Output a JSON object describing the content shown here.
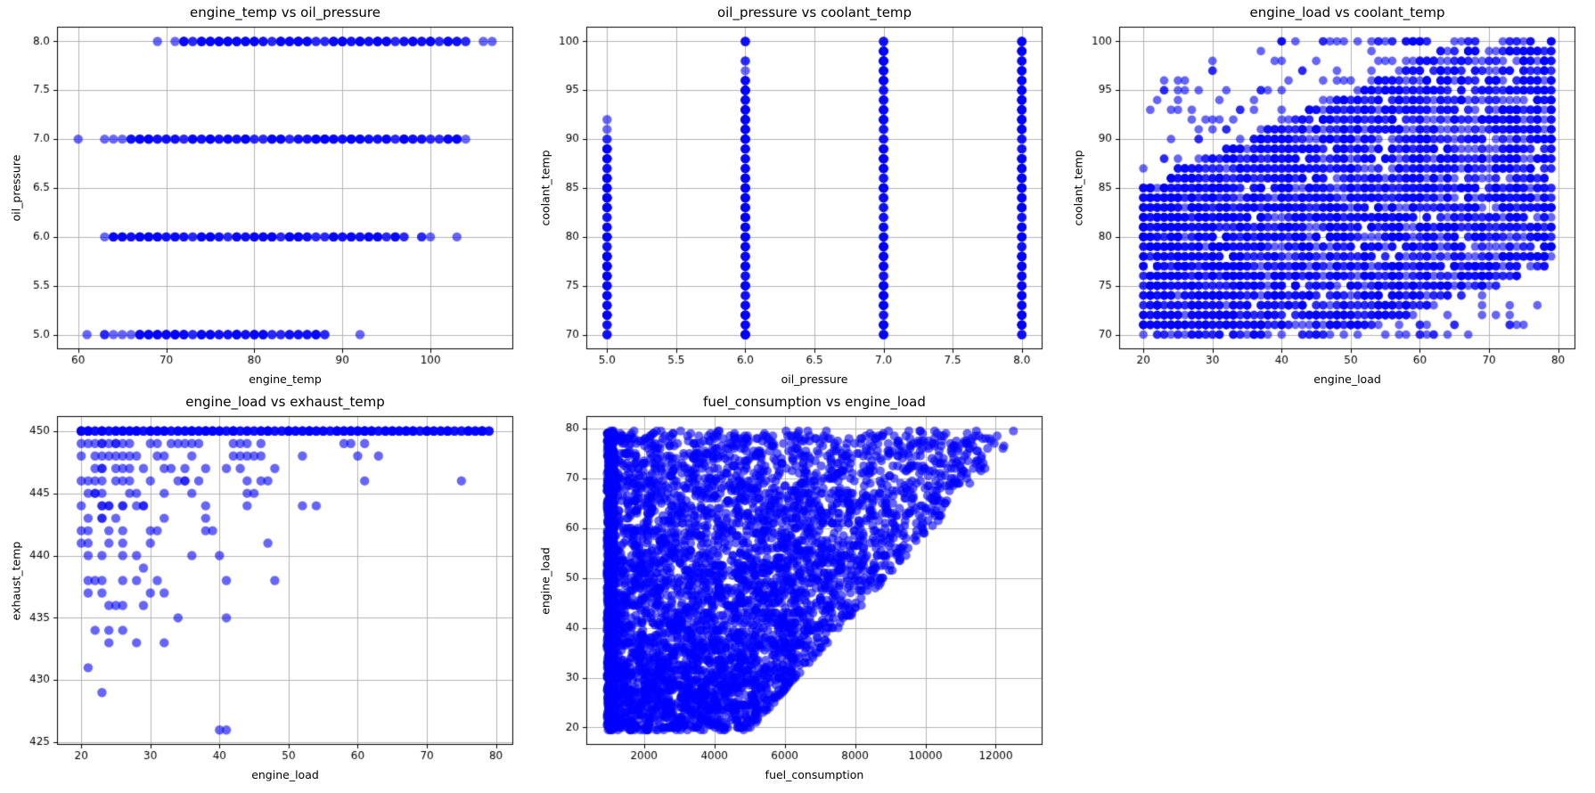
{
  "figure": {
    "background": "#ffffff",
    "dot_color": "#0000ff",
    "dot_alpha": 0.6,
    "grid_color": "#b4b4b4",
    "spine_color": "#000000",
    "tick_color": "#000000",
    "text_color": "#000000"
  },
  "chart_data": [
    {
      "id": "engine_temp_vs_oil_pressure",
      "type": "scatter",
      "title": "engine_temp vs oil_pressure",
      "xlabel": "engine_temp",
      "ylabel": "oil_pressure",
      "xlim": [
        57.6,
        109.4
      ],
      "ylim": [
        4.85,
        8.15
      ],
      "xticks": [
        60,
        70,
        80,
        90,
        100
      ],
      "xtick_labels": [
        "60",
        "70",
        "80",
        "90",
        "100"
      ],
      "yticks": [
        5.0,
        5.5,
        6.0,
        6.5,
        7.0,
        7.5,
        8.0
      ],
      "ytick_labels": [
        "5.0",
        "5.5",
        "6.0",
        "6.5",
        "7.0",
        "7.5",
        "8.0"
      ],
      "dot_radius": 5.2,
      "data_spec": {
        "kind": "hbands",
        "seed": 11,
        "dense_mult": [
          2,
          5
        ],
        "bands": [
          {
            "y": 5,
            "dense": [
              67,
              88
            ],
            "singles": [
              [
                61,
                1
              ],
              [
                63,
                2
              ],
              [
                64,
                1
              ],
              [
                65,
                1
              ],
              [
                66,
                1
              ],
              [
                92,
                1
              ]
            ]
          },
          {
            "y": 6,
            "dense": [
              64,
              97
            ],
            "singles": [
              [
                63,
                1
              ],
              [
                99,
                2
              ],
              [
                100,
                1
              ],
              [
                103,
                1
              ]
            ]
          },
          {
            "y": 7,
            "dense": [
              66,
              103
            ],
            "singles": [
              [
                60,
                1
              ],
              [
                63,
                1
              ],
              [
                64,
                1
              ],
              [
                65,
                1
              ],
              [
                104,
                1
              ]
            ]
          },
          {
            "y": 8,
            "dense": [
              72,
              104
            ],
            "singles": [
              [
                69,
                1
              ],
              [
                71,
                1
              ],
              [
                106,
                1
              ],
              [
                107,
                1
              ]
            ]
          }
        ]
      }
    },
    {
      "id": "oil_pressure_vs_coolant_temp",
      "type": "scatter",
      "title": "oil_pressure vs coolant_temp",
      "xlabel": "oil_pressure",
      "ylabel": "coolant_temp",
      "xlim": [
        4.85,
        8.15
      ],
      "ylim": [
        68.5,
        101.5
      ],
      "xticks": [
        5.0,
        5.5,
        6.0,
        6.5,
        7.0,
        7.5,
        8.0
      ],
      "xtick_labels": [
        "5.0",
        "5.5",
        "6.0",
        "6.5",
        "7.0",
        "7.5",
        "8.0"
      ],
      "yticks": [
        70,
        75,
        80,
        85,
        90,
        95,
        100
      ],
      "ytick_labels": [
        "70",
        "75",
        "80",
        "85",
        "90",
        "95",
        "100"
      ],
      "dot_radius": 5.2,
      "data_spec": {
        "kind": "vbands",
        "seed": 23,
        "dense_mult": [
          3,
          7
        ],
        "bands": [
          {
            "x": 5,
            "dense": [
              70,
              89
            ],
            "singles": [
              [
                90,
                2
              ],
              [
                91,
                1
              ],
              [
                92,
                1
              ]
            ]
          },
          {
            "x": 6,
            "dense": [
              70,
              96
            ],
            "singles": [
              [
                97,
                1
              ],
              [
                98,
                2
              ],
              [
                100,
                3
              ]
            ]
          },
          {
            "x": 7,
            "dense": [
              70,
              100
            ],
            "singles": []
          },
          {
            "x": 8,
            "dense": [
              70,
              100
            ],
            "singles": []
          }
        ]
      }
    },
    {
      "id": "engine_load_vs_coolant_temp",
      "type": "scatter",
      "title": "engine_load vs coolant_temp",
      "xlabel": "engine_load",
      "ylabel": "coolant_temp",
      "xlim": [
        16.5,
        82.5
      ],
      "ylim": [
        68.5,
        101.5
      ],
      "xticks": [
        20,
        30,
        40,
        50,
        60,
        70,
        80
      ],
      "xtick_labels": [
        "20",
        "30",
        "40",
        "50",
        "60",
        "70",
        "80"
      ],
      "yticks": [
        70,
        75,
        80,
        85,
        90,
        95,
        100
      ],
      "ytick_labels": [
        "70",
        "75",
        "80",
        "85",
        "90",
        "95",
        "100"
      ],
      "dot_radius": 4.8,
      "data_spec": {
        "kind": "load_temp_field",
        "seed": 42,
        "n": 4200,
        "load_min": 20,
        "load_max": 79,
        "temp_min": 70,
        "temp_max": 100,
        "lo_pivot": 50,
        "lo_slope": 0.25,
        "hi_base": 85,
        "hi_start": 20,
        "hi_slope": 0.33,
        "n_outliers_above": 90,
        "n_outliers_below": 28
      }
    },
    {
      "id": "engine_load_vs_exhaust_temp",
      "type": "scatter",
      "title": "engine_load vs exhaust_temp",
      "xlabel": "engine_load",
      "ylabel": "exhaust_temp",
      "xlim": [
        16.5,
        82.5
      ],
      "ylim": [
        424.8,
        451.2
      ],
      "xticks": [
        20,
        30,
        40,
        50,
        60,
        70,
        80
      ],
      "xtick_labels": [
        "20",
        "30",
        "40",
        "50",
        "60",
        "70",
        "80"
      ],
      "yticks": [
        425,
        430,
        435,
        440,
        445,
        450
      ],
      "ytick_labels": [
        "425",
        "430",
        "435",
        "440",
        "445",
        "450"
      ],
      "dot_radius": 5.2,
      "data_spec": {
        "kind": "band_plus_points",
        "seed": 5,
        "band": {
          "y": 450,
          "x_range": [
            20,
            79
          ],
          "mult": [
            3,
            6
          ]
        },
        "points": [
          [
            20,
            449
          ],
          [
            21,
            449
          ],
          [
            22,
            449
          ],
          [
            23,
            449,
            2
          ],
          [
            24,
            449
          ],
          [
            25,
            449,
            2
          ],
          [
            26,
            449
          ],
          [
            27,
            449
          ],
          [
            30,
            449
          ],
          [
            31,
            449
          ],
          [
            33,
            449
          ],
          [
            34,
            449
          ],
          [
            35,
            449
          ],
          [
            36,
            449
          ],
          [
            37,
            449
          ],
          [
            42,
            449
          ],
          [
            43,
            449
          ],
          [
            44,
            449
          ],
          [
            46,
            449
          ],
          [
            58,
            449
          ],
          [
            59,
            449
          ],
          [
            61,
            449
          ],
          [
            20,
            448
          ],
          [
            22,
            448
          ],
          [
            23,
            448
          ],
          [
            24,
            448
          ],
          [
            25,
            448
          ],
          [
            26,
            448
          ],
          [
            27,
            448
          ],
          [
            28,
            448
          ],
          [
            31,
            448
          ],
          [
            32,
            448
          ],
          [
            36,
            448
          ],
          [
            42,
            448
          ],
          [
            43,
            448
          ],
          [
            44,
            448
          ],
          [
            45,
            448
          ],
          [
            46,
            448
          ],
          [
            52,
            448
          ],
          [
            60,
            448
          ],
          [
            63,
            448
          ],
          [
            22,
            447
          ],
          [
            23,
            447,
            2
          ],
          [
            25,
            447
          ],
          [
            26,
            447
          ],
          [
            27,
            447
          ],
          [
            29,
            447
          ],
          [
            32,
            447
          ],
          [
            33,
            447
          ],
          [
            35,
            447
          ],
          [
            38,
            447
          ],
          [
            41,
            447
          ],
          [
            43,
            447
          ],
          [
            48,
            447
          ],
          [
            20,
            446
          ],
          [
            21,
            446
          ],
          [
            22,
            446
          ],
          [
            23,
            446
          ],
          [
            25,
            446
          ],
          [
            26,
            446
          ],
          [
            27,
            446
          ],
          [
            30,
            446
          ],
          [
            34,
            446
          ],
          [
            35,
            446,
            2
          ],
          [
            37,
            446
          ],
          [
            44,
            446
          ],
          [
            46,
            446
          ],
          [
            47,
            446
          ],
          [
            61,
            446
          ],
          [
            75,
            446
          ],
          [
            21,
            445
          ],
          [
            22,
            445,
            2
          ],
          [
            23,
            445
          ],
          [
            27,
            445
          ],
          [
            28,
            445
          ],
          [
            32,
            445
          ],
          [
            36,
            445
          ],
          [
            44,
            445
          ],
          [
            45,
            445
          ],
          [
            20,
            444
          ],
          [
            23,
            444,
            2
          ],
          [
            24,
            444,
            2
          ],
          [
            26,
            444,
            2
          ],
          [
            28,
            444
          ],
          [
            29,
            444,
            2
          ],
          [
            38,
            444
          ],
          [
            44,
            444
          ],
          [
            52,
            444
          ],
          [
            54,
            444
          ],
          [
            21,
            443
          ],
          [
            23,
            443,
            2
          ],
          [
            25,
            443
          ],
          [
            32,
            443
          ],
          [
            38,
            443
          ],
          [
            20,
            442
          ],
          [
            21,
            442
          ],
          [
            24,
            442
          ],
          [
            26,
            442
          ],
          [
            30,
            442
          ],
          [
            31,
            442
          ],
          [
            38,
            442
          ],
          [
            39,
            442
          ],
          [
            20,
            441
          ],
          [
            21,
            441
          ],
          [
            24,
            441
          ],
          [
            26,
            441
          ],
          [
            30,
            441
          ],
          [
            47,
            441
          ],
          [
            21,
            440
          ],
          [
            23,
            440
          ],
          [
            26,
            440
          ],
          [
            28,
            440
          ],
          [
            36,
            440
          ],
          [
            40,
            440
          ],
          [
            29,
            439
          ],
          [
            21,
            438
          ],
          [
            22,
            438
          ],
          [
            23,
            438
          ],
          [
            26,
            438
          ],
          [
            28,
            438
          ],
          [
            31,
            438
          ],
          [
            41,
            438
          ],
          [
            48,
            438
          ],
          [
            21,
            437
          ],
          [
            23,
            437
          ],
          [
            30,
            437
          ],
          [
            32,
            437
          ],
          [
            24,
            436
          ],
          [
            25,
            436
          ],
          [
            26,
            436
          ],
          [
            29,
            436
          ],
          [
            34,
            435
          ],
          [
            41,
            435
          ],
          [
            22,
            434
          ],
          [
            24,
            434
          ],
          [
            26,
            434
          ],
          [
            24,
            433
          ],
          [
            28,
            433
          ],
          [
            32,
            433
          ],
          [
            21,
            431
          ],
          [
            23,
            429
          ],
          [
            40,
            426
          ],
          [
            41,
            426
          ]
        ]
      }
    },
    {
      "id": "fuel_consumption_vs_engine_load",
      "type": "scatter",
      "title": "fuel_consumption vs engine_load",
      "xlabel": "fuel_consumption",
      "ylabel": "engine_load",
      "xlim": [
        360,
        13330
      ],
      "ylim": [
        16.5,
        82.5
      ],
      "xticks": [
        2000,
        4000,
        6000,
        8000,
        10000,
        12000
      ],
      "xtick_labels": [
        "2000",
        "4000",
        "6000",
        "8000",
        "10000",
        "12000"
      ],
      "yticks": [
        20,
        30,
        40,
        50,
        60,
        70,
        80
      ],
      "ytick_labels": [
        "20",
        "30",
        "40",
        "50",
        "60",
        "70",
        "80"
      ],
      "dot_radius": 5.0,
      "data_spec": {
        "kind": "fuel_triangle",
        "seed": 7,
        "n": 4200,
        "stripe_n": 700,
        "load_min": 19.5,
        "load_max": 79.5,
        "load_step": 0.5,
        "fuel_min": 950,
        "stripe_width": 200,
        "max_intercept": 2500,
        "max_slope": 128,
        "max_cap": 12740,
        "tail_pow": 1.15
      }
    }
  ]
}
